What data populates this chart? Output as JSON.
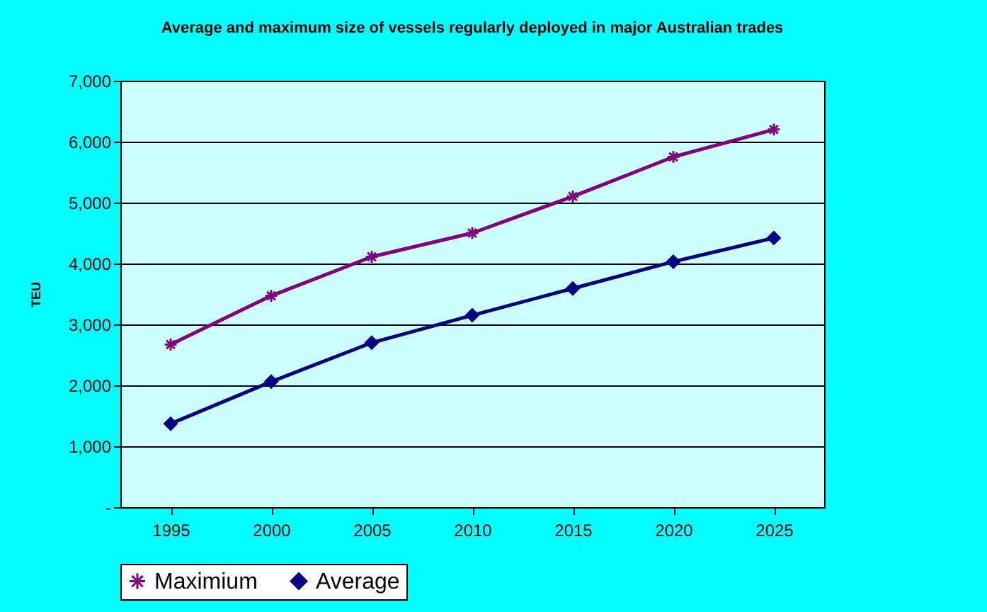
{
  "chart_data": {
    "type": "line",
    "title": "Average and maximum size of vessels regularly deployed in major Australian trades",
    "ylabel": "TEU",
    "categories": [
      "1995",
      "2000",
      "2005",
      "2010",
      "2015",
      "2020",
      "2025"
    ],
    "series": [
      {
        "name": "Maximium",
        "color": "#800080",
        "marker": "cross",
        "values": [
          2670,
          3470,
          4110,
          4500,
          5100,
          5750,
          6200
        ]
      },
      {
        "name": "Average",
        "color": "#000080",
        "marker": "diamond",
        "values": [
          1370,
          2060,
          2700,
          3150,
          3590,
          4030,
          4420
        ]
      }
    ],
    "ylim": [
      0,
      7000
    ],
    "yticks": [
      {
        "value": 0,
        "label": "-"
      },
      {
        "value": 1000,
        "label": "1,000"
      },
      {
        "value": 2000,
        "label": "2,000"
      },
      {
        "value": 3000,
        "label": "3,000"
      },
      {
        "value": 4000,
        "label": "4,000"
      },
      {
        "value": 5000,
        "label": "5,000"
      },
      {
        "value": 6000,
        "label": "6,000"
      },
      {
        "value": 7000,
        "label": "7,000"
      }
    ],
    "grid": "y",
    "legend": "bottom"
  }
}
